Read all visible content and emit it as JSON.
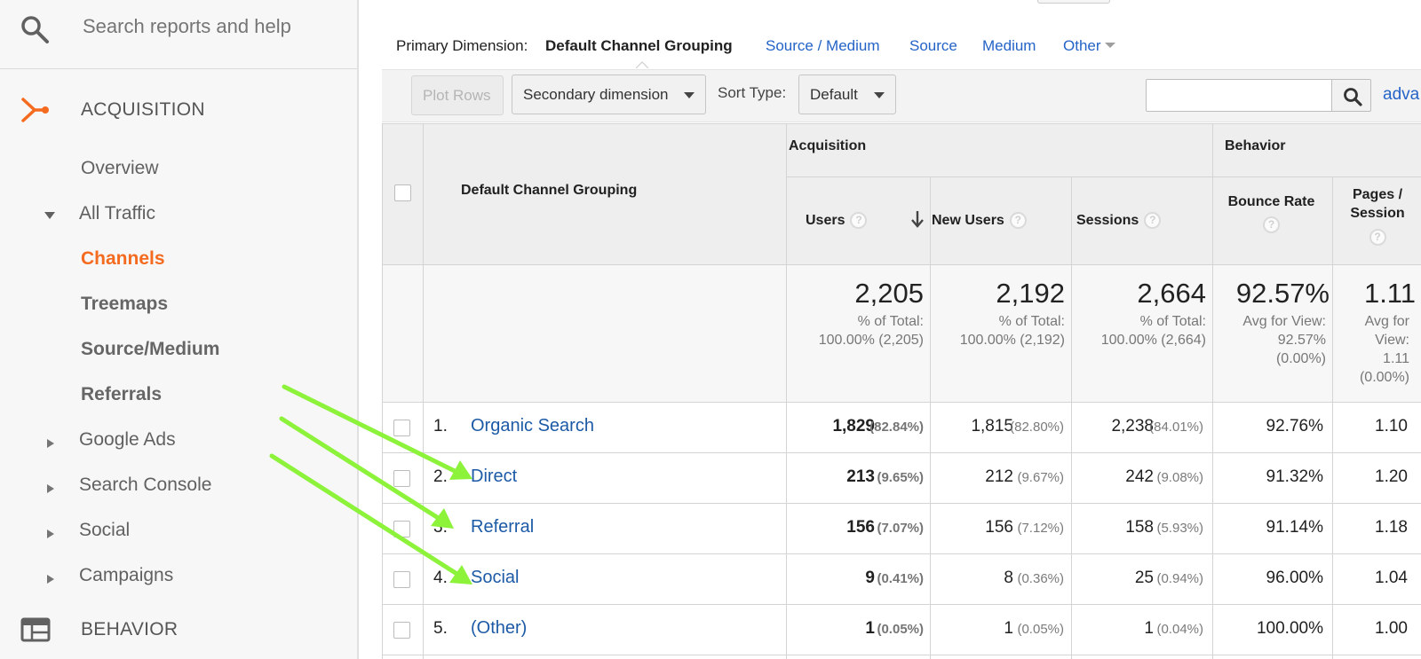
{
  "sidebar": {
    "search_placeholder": "Search reports and help",
    "acquisition_label": "ACQUISITION",
    "behavior_label": "BEHAVIOR",
    "items": [
      {
        "label": "Overview"
      },
      {
        "label": "All Traffic"
      },
      {
        "label": "Channels"
      },
      {
        "label": "Treemaps"
      },
      {
        "label": "Source/Medium"
      },
      {
        "label": "Referrals"
      },
      {
        "label": "Google Ads"
      },
      {
        "label": "Search Console"
      },
      {
        "label": "Social"
      },
      {
        "label": "Campaigns"
      }
    ],
    "accent_color": "#f46b20"
  },
  "primary_dimension": {
    "label": "Primary Dimension:",
    "current": "Default Channel Grouping",
    "links": [
      "Source / Medium",
      "Source",
      "Medium",
      "Other"
    ]
  },
  "toolbar": {
    "plot_rows": "Plot Rows",
    "secondary_dimension": "Secondary dimension",
    "sort_type_label": "Sort Type:",
    "sort_type_value": "Default",
    "search_value": "",
    "advanced_link": "adva"
  },
  "table": {
    "dimension_header": "Default Channel Grouping",
    "group_acquisition": "Acquisition",
    "group_behavior": "Behavior",
    "columns": {
      "users": "Users",
      "new_users": "New Users",
      "sessions": "Sessions",
      "bounce_rate": "Bounce Rate",
      "pages_session_1": "Pages /",
      "pages_session_2": "Session"
    },
    "help_glyph": "?",
    "summary": {
      "users": {
        "value": "2,205",
        "line1": "% of Total:",
        "line2": "100.00% (2,205)"
      },
      "new_users": {
        "value": "2,192",
        "line1": "% of Total:",
        "line2": "100.00% (2,192)"
      },
      "sessions": {
        "value": "2,664",
        "line1": "% of Total:",
        "line2": "100.00% (2,664)"
      },
      "bounce_rate": {
        "value": "92.57%",
        "line1": "Avg for View:",
        "line2": "92.57%",
        "line3": "(0.00%)"
      },
      "pages_session": {
        "value": "1.11",
        "line1": "Avg for",
        "line2": "View:",
        "line3": "1.11",
        "line4": "(0.00%)"
      }
    },
    "rows": [
      {
        "idx": "1.",
        "name": "Organic Search",
        "users": "1,829",
        "users_pct": "(82.84%)",
        "new_users": "1,815",
        "new_users_pct": "(82.80%)",
        "sessions": "2,238",
        "sessions_pct": "(84.01%)",
        "bounce_rate": "92.76%",
        "pages_session": "1.10"
      },
      {
        "idx": "2.",
        "name": "Direct",
        "users": "213",
        "users_pct": "(9.65%)",
        "new_users": "212",
        "new_users_pct": "(9.67%)",
        "sessions": "242",
        "sessions_pct": "(9.08%)",
        "bounce_rate": "91.32%",
        "pages_session": "1.20"
      },
      {
        "idx": "3.",
        "name": "Referral",
        "users": "156",
        "users_pct": "(7.07%)",
        "new_users": "156",
        "new_users_pct": "(7.12%)",
        "sessions": "158",
        "sessions_pct": "(5.93%)",
        "bounce_rate": "91.14%",
        "pages_session": "1.18"
      },
      {
        "idx": "4.",
        "name": "Social",
        "users": "9",
        "users_pct": "(0.41%)",
        "new_users": "8",
        "new_users_pct": "(0.36%)",
        "sessions": "25",
        "sessions_pct": "(0.94%)",
        "bounce_rate": "96.00%",
        "pages_session": "1.04"
      },
      {
        "idx": "5.",
        "name": "(Other)",
        "users": "1",
        "users_pct": "(0.05%)",
        "new_users": "1",
        "new_users_pct": "(0.05%)",
        "sessions": "1",
        "sessions_pct": "(0.04%)",
        "bounce_rate": "100.00%",
        "pages_session": "1.00"
      }
    ]
  },
  "annotation_arrow_color": "#8cf23a"
}
